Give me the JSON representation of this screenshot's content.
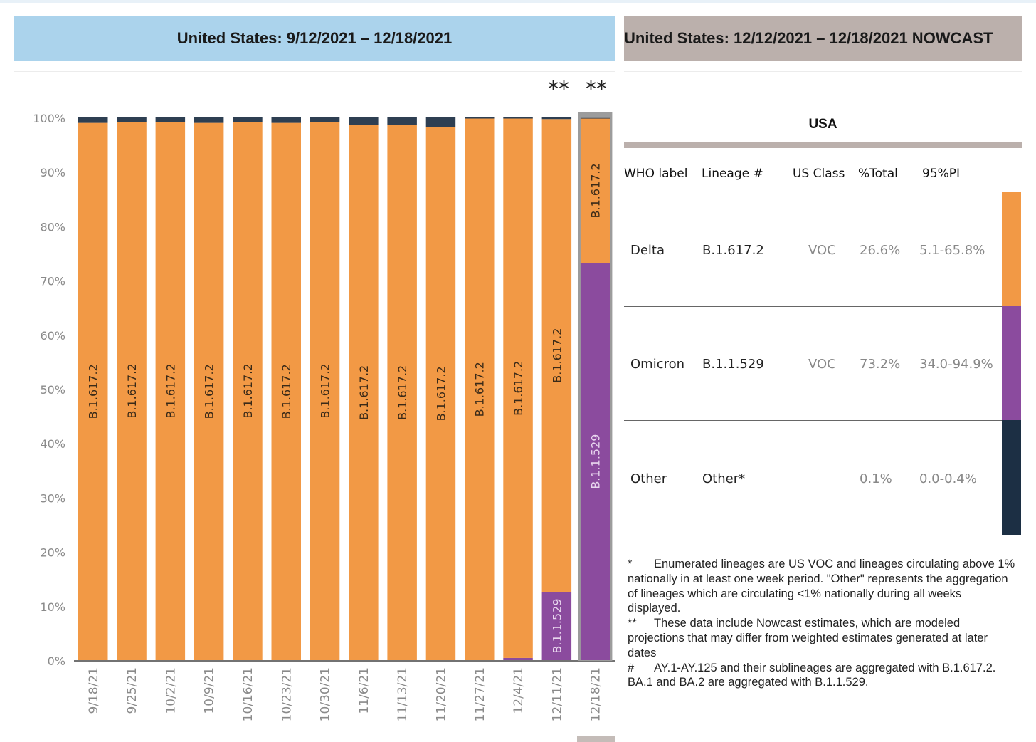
{
  "header_left": "United States: 9/12/2021 – 12/18/2021",
  "header_right": "United States: 12/12/2021 – 12/18/2021 NOWCAST",
  "nowcast_marks": [
    "**",
    "**"
  ],
  "colors": {
    "delta": "#f29945",
    "omicron": "#8b4b9e",
    "other": "#2e3f52",
    "header_left_bg": "#abd3ec",
    "header_right_bg": "#bbb0ac"
  },
  "chart_data": {
    "type": "bar",
    "stacked": true,
    "title": "United States: 9/12/2021 – 12/18/2021",
    "xlabel": "",
    "ylabel": "",
    "ylim": [
      0,
      100
    ],
    "y_ticks": [
      "0%",
      "10%",
      "20%",
      "30%",
      "40%",
      "50%",
      "60%",
      "70%",
      "80%",
      "90%",
      "100%"
    ],
    "grid": false,
    "categories": [
      "9/18/21",
      "9/25/21",
      "10/2/21",
      "10/9/21",
      "10/16/21",
      "10/23/21",
      "10/30/21",
      "11/6/21",
      "11/13/21",
      "11/20/21",
      "11/27/21",
      "12/4/21",
      "12/11/21",
      "12/18/21"
    ],
    "nowcast_categories": [
      "12/11/21",
      "12/18/21"
    ],
    "highlighted_category": "12/18/21",
    "series": [
      {
        "name": "B.1.1.529",
        "color": "#8b4b9e",
        "label": "B.1.1.529",
        "values": [
          0,
          0,
          0,
          0,
          0,
          0,
          0,
          0,
          0,
          0,
          0,
          0.4,
          12.6,
          73.2
        ]
      },
      {
        "name": "B.1.617.2",
        "color": "#f29945",
        "label": "B.1.617.2",
        "values": [
          99.0,
          99.2,
          99.2,
          99.0,
          99.2,
          99.0,
          99.2,
          98.6,
          98.6,
          98.2,
          99.8,
          99.4,
          87.1,
          26.6
        ]
      },
      {
        "name": "Other",
        "color": "#2e3f52",
        "label": "",
        "values": [
          1.0,
          0.8,
          0.8,
          1.0,
          0.8,
          1.0,
          0.8,
          1.4,
          1.4,
          1.8,
          0.2,
          0.2,
          0.3,
          0.1
        ]
      }
    ]
  },
  "table": {
    "region": "USA",
    "columns": [
      "WHO label",
      "Lineage #",
      "US Class",
      "%Total",
      "95%PI"
    ],
    "rows": [
      {
        "who": "Delta",
        "lineage": "B.1.617.2",
        "us_class": "VOC",
        "total": "26.6%",
        "pi": "5.1-65.8%",
        "color": "#f29945"
      },
      {
        "who": "Omicron",
        "lineage": "B.1.1.529",
        "us_class": "VOC",
        "total": "73.2%",
        "pi": "34.0-94.9%",
        "color": "#8b4b9e"
      },
      {
        "who": "Other",
        "lineage": "Other*",
        "us_class": "",
        "total": "0.1%",
        "pi": "0.0-0.4%",
        "color": "#1c2f44"
      }
    ]
  },
  "footnotes": [
    {
      "symbol": "*",
      "text": "Enumerated lineages are US VOC and lineages circulating above 1% nationally in at least one week period. \"Other\" represents the aggregation of lineages which are circulating <1% nationally during all weeks displayed."
    },
    {
      "symbol": "**",
      "text": "These data include Nowcast estimates, which are modeled projections that may differ from weighted estimates generated at later dates"
    },
    {
      "symbol": "#",
      "text": "AY.1-AY.125 and their sublineages are aggregated with B.1.617.2. BA.1 and BA.2 are aggregated with B.1.1.529."
    }
  ]
}
